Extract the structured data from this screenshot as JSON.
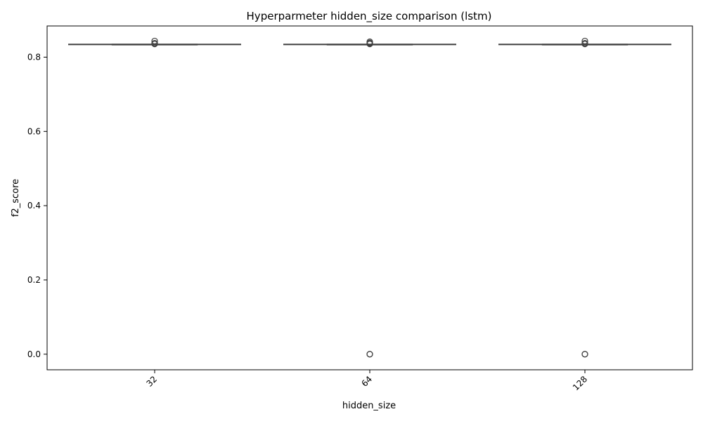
{
  "chart_data": {
    "type": "box",
    "title": "Hyperparmeter hidden_size comparison (lstm)",
    "xlabel": "hidden_size",
    "ylabel": "f2_score",
    "categories": [
      "32",
      "64",
      "128"
    ],
    "ylim": [
      -0.042,
      0.884
    ],
    "yticks": [
      0.0,
      0.2,
      0.4,
      0.6,
      0.8
    ],
    "ytick_labels": [
      "0.0",
      "0.2",
      "0.4",
      "0.6",
      "0.8"
    ],
    "grid": false,
    "colors": {
      "box_line": "#3f3f3f",
      "box_fill": "#ffffff",
      "axis": "#000000"
    },
    "boxes": [
      {
        "category": "32",
        "whisker_low": 0.833,
        "q1": 0.8335,
        "median": 0.8345,
        "q3": 0.835,
        "whisker_high": 0.835,
        "outliers": [
          0.8355,
          0.8365,
          0.8375,
          0.8435
        ]
      },
      {
        "category": "64",
        "whisker_low": 0.833,
        "q1": 0.8335,
        "median": 0.8345,
        "q3": 0.835,
        "whisker_high": 0.835,
        "outliers": [
          0.8355,
          0.8365,
          0.8385,
          0.8415,
          0.0,
          0.0
        ]
      },
      {
        "category": "128",
        "whisker_low": 0.833,
        "q1": 0.8335,
        "median": 0.8345,
        "q3": 0.835,
        "whisker_high": 0.835,
        "outliers": [
          0.8355,
          0.8365,
          0.8375,
          0.8435,
          0.0,
          0.0
        ]
      }
    ]
  }
}
